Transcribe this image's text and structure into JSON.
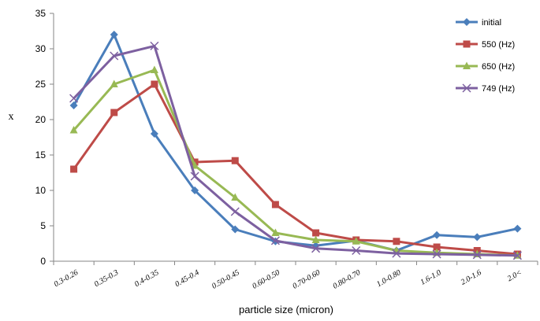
{
  "chart_data": {
    "type": "line",
    "title": "",
    "xlabel": "particle size  (micron)",
    "ylabel": "x",
    "ylim": [
      0,
      35
    ],
    "yticks": [
      0,
      5,
      10,
      15,
      20,
      25,
      30,
      35
    ],
    "grid": false,
    "legend_position": "right",
    "categories": [
      "0.3-0.26",
      "0.35-0.3",
      "0.4-0.35",
      "0.45-0.4",
      "0.50-0.45",
      "0.60-0.50",
      "0.70-0.60",
      "0.80-0.70",
      "1.0-0.80",
      "1.6-1.0",
      "2.0-1.6",
      "2.0<"
    ],
    "series": [
      {
        "name": "initial",
        "color": "#4a7ebb",
        "marker": "diamond",
        "values": [
          22,
          32,
          18,
          10,
          4.5,
          2.8,
          2.2,
          2.9,
          1.5,
          3.7,
          3.4,
          4.6
        ]
      },
      {
        "name": "550 (Hz)",
        "color": "#be4b48",
        "marker": "square",
        "values": [
          13,
          21,
          25,
          14,
          14.2,
          8,
          4,
          3,
          2.8,
          2,
          1.5,
          1
        ]
      },
      {
        "name": "650 (Hz)",
        "color": "#98b954",
        "marker": "triangle",
        "values": [
          18.5,
          25,
          27,
          13.5,
          9,
          4,
          3,
          2.8,
          1.5,
          1.2,
          1,
          0.8
        ]
      },
      {
        "name": "749 (Hz)",
        "color": "#7d60a0",
        "marker": "x",
        "values": [
          23,
          29,
          30.4,
          12,
          7,
          2.9,
          1.8,
          1.5,
          1.1,
          1,
          0.9,
          0.8
        ]
      }
    ]
  }
}
